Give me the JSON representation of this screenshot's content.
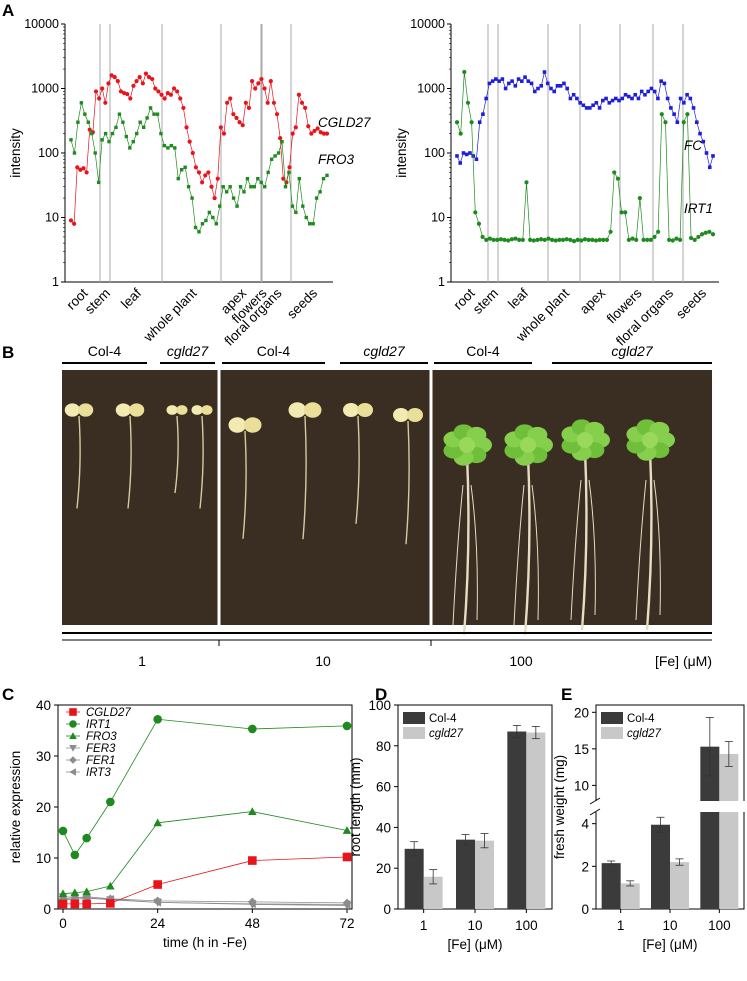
{
  "panels": {
    "a": {
      "letter": "A"
    },
    "b": {
      "letter": "B"
    },
    "c": {
      "letter": "C"
    },
    "d": {
      "letter": "D"
    },
    "e": {
      "letter": "E"
    }
  },
  "colors": {
    "red": "#e8141c",
    "green": "#1f8a1f",
    "blue": "#1f1fd8",
    "gray": "#8c8c8c",
    "dark_bar": "#3b3b3b",
    "light_bar": "#c8c8c8",
    "photo_bg": "#3a2e22"
  },
  "panel_b": {
    "group_labels": [
      "Col-4",
      "cgld27",
      "Col-4",
      "cgld27",
      "Col-4",
      "cgld27"
    ],
    "fe_labels": [
      "1",
      "10",
      "100"
    ],
    "fe_unit": "[Fe] (μM)"
  },
  "chart_data": [
    {
      "type": "line",
      "id": "A-left",
      "ylabel": "intensity",
      "yscale": "log",
      "ylim": [
        1,
        10000
      ],
      "yticks": [
        "1",
        "10",
        "100",
        "1000",
        "10000"
      ],
      "groups": [
        "root",
        "stem",
        "leaf",
        "whole plant",
        "apex",
        "flowers",
        "floral organs",
        "seeds"
      ],
      "series": [
        {
          "name": "CGLD27",
          "color": "#e8141c",
          "values": [
            9,
            8,
            60,
            55,
            58,
            50,
            230,
            210,
            900,
            700,
            1000,
            600,
            1200,
            1600,
            1500,
            1300,
            900,
            850,
            820,
            700,
            1100,
            1300,
            1500,
            1200,
            1700,
            1500,
            1400,
            1000,
            900,
            800,
            700,
            850,
            800,
            1000,
            900,
            700,
            500,
            250,
            150,
            100,
            60,
            50,
            35,
            45,
            50,
            30,
            20,
            40,
            250,
            200,
            600,
            700,
            400,
            350,
            300,
            270,
            600,
            500,
            1300,
            1000,
            1200,
            1400,
            1000,
            600,
            1300,
            600,
            400,
            170,
            40,
            35,
            60,
            200,
            250,
            800,
            600,
            500,
            260,
            200,
            220,
            240,
            210,
            200,
            200
          ]
        },
        {
          "name": "FRO3",
          "color": "#1f8a1f",
          "values": [
            160,
            100,
            300,
            600,
            400,
            300,
            200,
            100,
            35,
            160,
            200,
            150,
            200,
            250,
            400,
            300,
            180,
            120,
            150,
            200,
            300,
            250,
            350,
            500,
            400,
            400,
            200,
            130,
            120,
            130,
            120,
            40,
            55,
            60,
            30,
            20,
            7,
            6,
            8,
            9,
            12,
            10,
            8,
            15,
            30,
            25,
            30,
            20,
            15,
            30,
            25,
            40,
            30,
            30,
            40,
            35,
            30,
            50,
            80,
            90,
            100,
            150,
            30,
            50,
            15,
            12,
            40,
            15,
            10,
            8,
            8,
            20,
            25,
            40,
            45
          ]
        }
      ]
    },
    {
      "type": "line",
      "id": "A-right",
      "ylabel": "intensity",
      "yscale": "log",
      "ylim": [
        1,
        10000
      ],
      "yticks": [
        "1",
        "10",
        "100",
        "1000",
        "10000"
      ],
      "groups": [
        "root",
        "stem",
        "leaf",
        "whole plant",
        "apex",
        "flowers",
        "floral organs",
        "seeds"
      ],
      "series": [
        {
          "name": "FC",
          "color": "#1f1fd8",
          "values": [
            90,
            70,
            100,
            95,
            100,
            90,
            80,
            300,
            400,
            700,
            1200,
            1300,
            1400,
            1300,
            1400,
            1000,
            1200,
            1300,
            1100,
            1400,
            1300,
            1500,
            1300,
            1200,
            900,
            1000,
            1100,
            1800,
            1200,
            1000,
            900,
            1100,
            1100,
            1200,
            1000,
            700,
            800,
            700,
            600,
            550,
            500,
            500,
            550,
            600,
            500,
            650,
            700,
            600,
            650,
            700,
            650,
            700,
            800,
            750,
            700,
            800,
            700,
            900,
            800,
            900,
            1000,
            900,
            700,
            1300,
            1200,
            700,
            500,
            400,
            300,
            700,
            600,
            800,
            700,
            500,
            300,
            200,
            150,
            100,
            60,
            90
          ]
        },
        {
          "name": "IRT1",
          "color": "#1f8a1f",
          "values": [
            300,
            200,
            1800,
            600,
            300,
            12,
            8,
            5,
            4.5,
            4.7,
            4.5,
            4.5,
            4.6,
            4.5,
            4.4,
            4.6,
            4.7,
            4.5,
            4.5,
            35,
            4.5,
            4.4,
            4.5,
            4.6,
            4.5,
            4.7,
            4.5,
            4.4,
            4.5,
            4.5,
            4.6,
            4.5,
            4.3,
            4.5,
            4.4,
            4.6,
            4.5,
            4.5,
            4.4,
            4.5,
            4.5,
            4.5,
            6,
            50,
            40,
            12,
            12,
            4.5,
            4.7,
            4.5,
            20,
            4.5,
            4.5,
            4.5,
            5,
            6,
            400,
            300,
            4.5,
            4.4,
            4.7,
            4.5,
            300,
            400,
            4.8,
            4.5,
            5,
            5.5,
            5.8,
            6,
            5.5
          ]
        }
      ]
    },
    {
      "type": "line",
      "id": "C",
      "xlabel": "time (h in -Fe)",
      "ylabel": "relative expression",
      "x": [
        0,
        3,
        6,
        12,
        24,
        48,
        72
      ],
      "xticks": [
        "0",
        "24",
        "48",
        "72"
      ],
      "ylim": [
        0,
        40
      ],
      "yticks": [
        "0",
        "10",
        "20",
        "30",
        "40"
      ],
      "series": [
        {
          "name": "CGLD27",
          "color": "#e8141c",
          "marker": "square",
          "values": [
            1.0,
            1.0,
            1.0,
            1.1,
            4.8,
            9.5,
            10.2
          ]
        },
        {
          "name": "IRT1",
          "color": "#1f8a1f",
          "marker": "circle",
          "values": [
            15.3,
            10.6,
            13.9,
            21.0,
            37.2,
            35.3,
            35.9
          ]
        },
        {
          "name": "FRO3",
          "color": "#1f8a1f",
          "marker": "triangle-up",
          "values": [
            3.0,
            3.2,
            3.4,
            4.5,
            16.9,
            19.1,
            15.4
          ]
        },
        {
          "name": "FER3",
          "color": "#8c8c8c",
          "marker": "triangle-down",
          "values": [
            2.4,
            2.3,
            2.2,
            1.8,
            1.3,
            0.9,
            0.7
          ]
        },
        {
          "name": "FER1",
          "color": "#8c8c8c",
          "marker": "diamond",
          "values": [
            2.0,
            2.2,
            2.4,
            2.0,
            1.6,
            1.4,
            1.2
          ]
        },
        {
          "name": "IRT3",
          "color": "#8c8c8c",
          "marker": "triangle-left",
          "values": [
            1.8,
            1.9,
            2.1,
            1.9,
            1.3,
            1.0,
            0.9
          ]
        }
      ]
    },
    {
      "type": "bar",
      "id": "D",
      "xlabel": "[Fe] (μM)",
      "ylabel": "root length (mm)",
      "categories": [
        "1",
        "10",
        "100"
      ],
      "ylim": [
        0,
        100
      ],
      "yticks": [
        "0",
        "20",
        "40",
        "60",
        "80",
        "100"
      ],
      "series": [
        {
          "name": "Col-4",
          "color": "#3b3b3b",
          "values": [
            29.5,
            34.0,
            87.0
          ],
          "errors": [
            3.5,
            2.5,
            3.0
          ]
        },
        {
          "name": "cgld27",
          "color": "#c8c8c8",
          "values": [
            15.8,
            33.5,
            86.5
          ],
          "errors": [
            3.5,
            3.5,
            3.0
          ]
        }
      ]
    },
    {
      "type": "bar",
      "id": "E",
      "xlabel": "[Fe] (μM)",
      "ylabel": "fresh weight (mg)",
      "categories": [
        "1",
        "10",
        "100"
      ],
      "yticks": [
        "0",
        "2",
        "4",
        "10",
        "15",
        "20"
      ],
      "axis_break": [
        4.5,
        8
      ],
      "series": [
        {
          "name": "Col-4",
          "color": "#3b3b3b",
          "values": [
            2.15,
            3.95,
            15.3
          ],
          "errors": [
            0.1,
            0.35,
            4.0
          ]
        },
        {
          "name": "cgld27",
          "color": "#c8c8c8",
          "values": [
            1.2,
            2.2,
            14.3
          ],
          "errors": [
            0.12,
            0.15,
            1.7
          ]
        }
      ]
    }
  ]
}
